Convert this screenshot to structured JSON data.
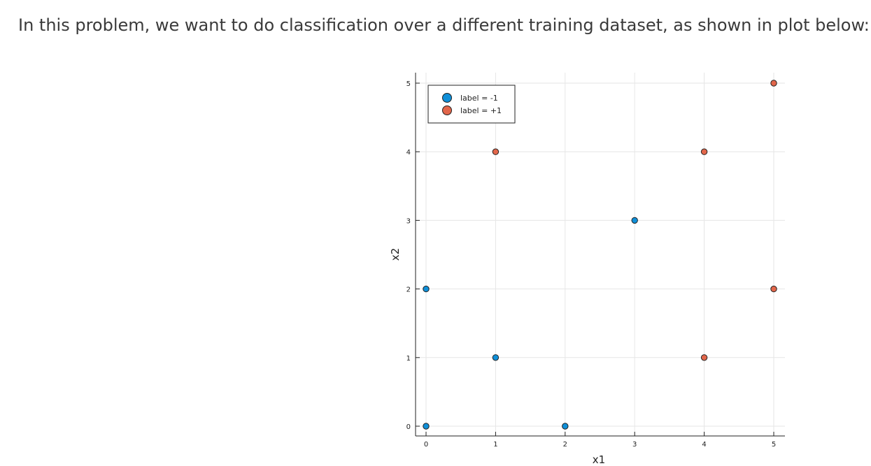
{
  "page": {
    "intro_text": "In this problem, we want to do classification over a different training dataset, as shown in plot below:"
  },
  "chart_data": {
    "type": "scatter",
    "title": "",
    "xlabel": "x1",
    "ylabel": "x2",
    "xlim": [
      0,
      5
    ],
    "ylim": [
      0,
      5
    ],
    "x_ticks": [
      0,
      1,
      2,
      3,
      4,
      5
    ],
    "y_ticks": [
      0,
      1,
      2,
      3,
      4,
      5
    ],
    "grid": true,
    "legend_position": "top-left",
    "series": [
      {
        "name": "label = -1",
        "color": "#0f8fd8",
        "points": [
          [
            0,
            0
          ],
          [
            0,
            2
          ],
          [
            1,
            1
          ],
          [
            2,
            0
          ],
          [
            3,
            3
          ]
        ]
      },
      {
        "name": "label = +1",
        "color": "#e2664a",
        "points": [
          [
            1,
            4
          ],
          [
            4,
            4
          ],
          [
            5,
            5
          ],
          [
            5,
            2
          ],
          [
            4,
            1
          ]
        ]
      }
    ]
  }
}
